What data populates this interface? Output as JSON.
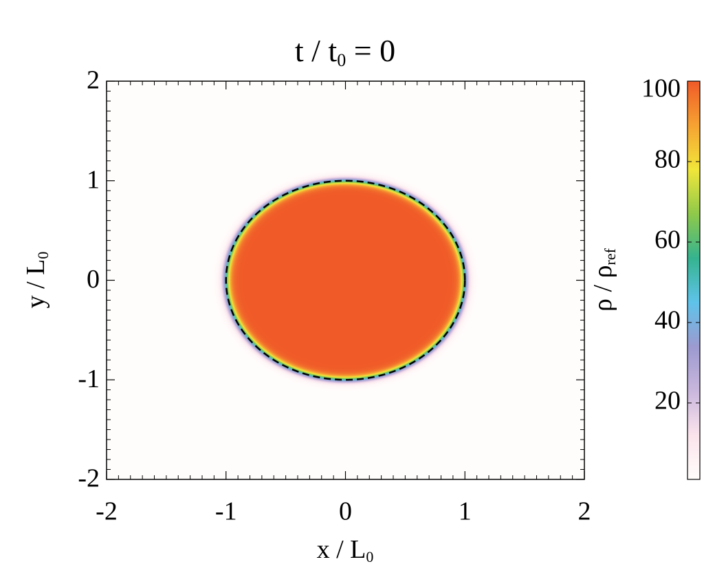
{
  "chart_data": {
    "type": "heatmap",
    "title": [
      "t / t",
      "0",
      " = 0"
    ],
    "x_label": [
      "x / L",
      "0"
    ],
    "y_label": [
      "y / L",
      "0"
    ],
    "colorbar_label": [
      "ρ / ρ",
      "ref"
    ],
    "xlim": [
      -2,
      2
    ],
    "ylim": [
      -2,
      2
    ],
    "xticks": [
      -2,
      -1,
      0,
      1,
      2
    ],
    "yticks": [
      -2,
      -1,
      0,
      1,
      2
    ],
    "field": {
      "center": [
        0,
        0
      ],
      "radius": 1,
      "inside": 100,
      "outside": 1
    },
    "contour": {
      "center": [
        0,
        0
      ],
      "radius": 1,
      "color": "#000000"
    },
    "clim": [
      1,
      100
    ],
    "cticks": [
      20,
      40,
      60,
      80,
      100
    ],
    "colormap": [
      "#fffdfb",
      "#fbe3ec",
      "#c9b6dc",
      "#9c9ad0",
      "#5fc3ea",
      "#35b38f",
      "#8fc94a",
      "#f1e63a",
      "#f6a232",
      "#f05a28"
    ]
  }
}
